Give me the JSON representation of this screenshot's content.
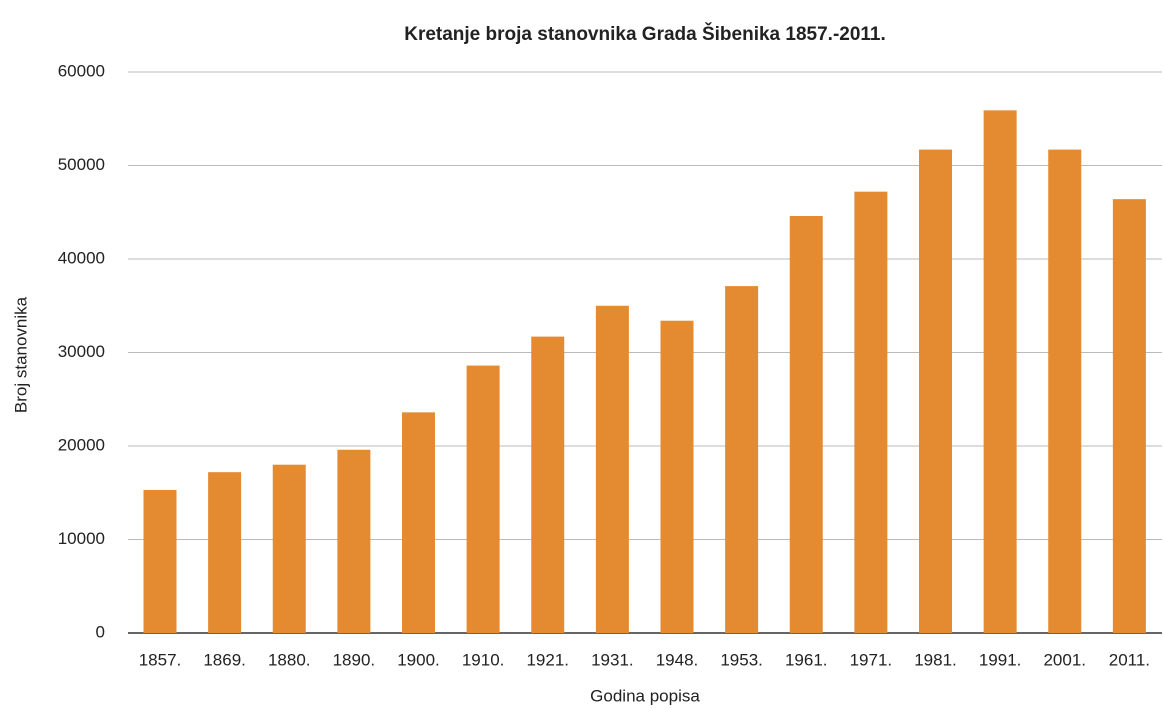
{
  "chart_data": {
    "type": "bar",
    "title": "Kretanje broja stanovnika Grada Šibenika 1857.-2011.",
    "x_label": "Godina popisa",
    "y_label": "Broj stanovnika",
    "categories": [
      "1857.",
      "1869.",
      "1880.",
      "1890.",
      "1900.",
      "1910.",
      "1921.",
      "1931.",
      "1948.",
      "1953.",
      "1961.",
      "1971.",
      "1981.",
      "1991.",
      "2001.",
      "2011."
    ],
    "values": [
      15300,
      17200,
      18000,
      19600,
      23600,
      28600,
      31700,
      35000,
      33400,
      37100,
      44600,
      47200,
      51700,
      55900,
      51700,
      46400
    ],
    "color": "#e48a30",
    "ylim": [
      0,
      60000
    ],
    "yticks": [
      0,
      10000,
      20000,
      30000,
      40000,
      50000,
      60000
    ],
    "grid": true
  }
}
